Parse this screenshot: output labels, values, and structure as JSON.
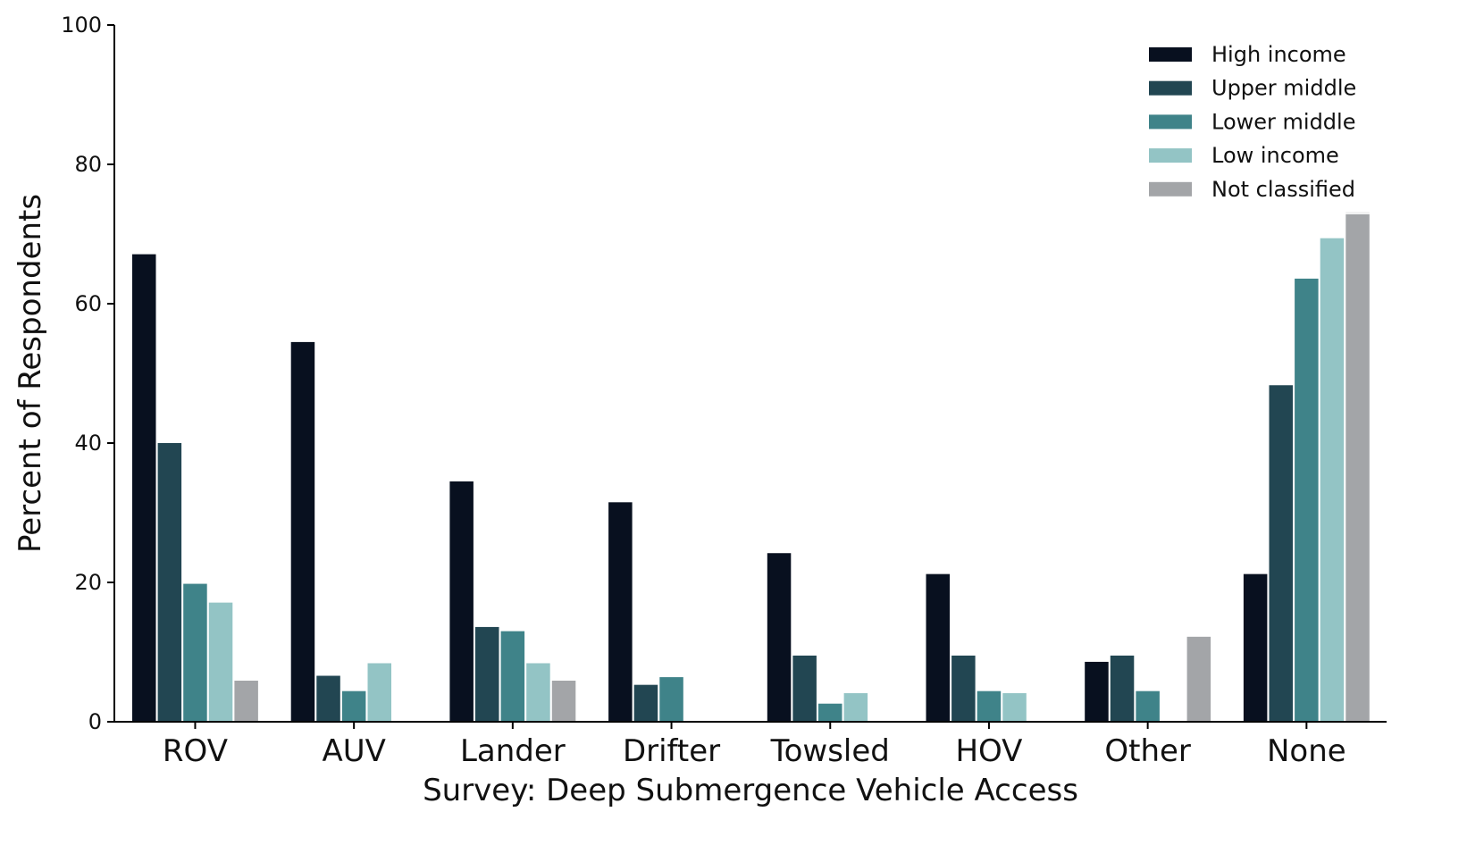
{
  "chart_data": {
    "type": "bar",
    "title": "",
    "xlabel": "Survey: Deep Submergence Vehicle Access",
    "ylabel": "Percent of Respondents",
    "ylim": [
      0,
      100
    ],
    "yticks": [
      0,
      20,
      40,
      60,
      80,
      100
    ],
    "grid": false,
    "legend_position": "top-right",
    "categories": [
      "ROV",
      "AUV",
      "Lander",
      "Drifter",
      "Towsled",
      "HOV",
      "Other",
      "None"
    ],
    "series": [
      {
        "name": "High income",
        "color": "#08101f",
        "values": [
          67.1,
          54.5,
          34.5,
          31.5,
          24.2,
          21.2,
          8.6,
          21.2
        ]
      },
      {
        "name": "Upper middle",
        "color": "#224652",
        "values": [
          40.0,
          6.6,
          13.6,
          5.3,
          9.5,
          9.5,
          9.5,
          48.3
        ]
      },
      {
        "name": "Lower middle",
        "color": "#3f8389",
        "values": [
          19.8,
          4.4,
          13.0,
          6.4,
          2.6,
          4.4,
          4.4,
          63.6
        ]
      },
      {
        "name": "Low income",
        "color": "#93c4c5",
        "values": [
          17.1,
          8.4,
          8.4,
          0,
          4.1,
          4.1,
          0,
          69.4
        ]
      },
      {
        "name": "Not classified",
        "color": "#a3a5a8",
        "values": [
          5.9,
          0,
          5.9,
          0,
          0,
          0,
          12.2,
          73.2
        ]
      }
    ]
  }
}
